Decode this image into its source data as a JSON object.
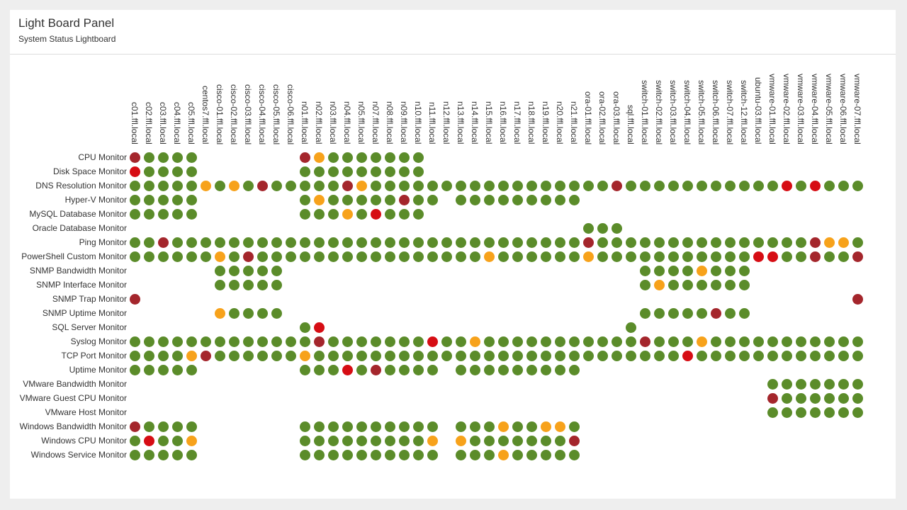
{
  "panel": {
    "title": "Light Board Panel",
    "subtitle": "System Status Lightboard"
  },
  "colors": {
    "G": "#5b8c2a",
    "O": "#f7a21b",
    "D": "#a4262c",
    "R": "#d60d14"
  },
  "legend_codes": {
    "G": "ok",
    "O": "warning",
    "D": "critical",
    "R": "down"
  },
  "nodes": [
    "c01.ffl.local",
    "c02.ffl.local",
    "c03.ffl.local",
    "c04.ffl.local",
    "c05.ffl.local",
    "centos7.ffl.local",
    "cisco-01.ffl.local",
    "cisco-02.ffl.local",
    "cisco-03.ffl.local",
    "cisco-04.ffl.local",
    "cisco-05.ffl.local",
    "cisco-06.ffl.local",
    "n01.ffl.local",
    "n02.ffl.local",
    "n03.ffl.local",
    "n04.ffl.local",
    "n05.ffl.local",
    "n07.ffl.local",
    "n08.ffl.local",
    "n09.ffl.local",
    "n10.ffl.local",
    "n11.ffl.local",
    "n12.ffl.local",
    "n13.ffl.local",
    "n14.ffl.local",
    "n15.ffl.local",
    "n16.ffl.local",
    "n17.ffl.local",
    "n18.ffl.local",
    "n19.ffl.local",
    "n20.ffl.local",
    "n21.ffl.local",
    "ora-01.ffl.local",
    "ora-02.ffl.local",
    "ora-03.ffl.local",
    "sql.ffl.local",
    "switch-01.ffl.local",
    "switch-02.ffl.local",
    "switch-03.ffl.local",
    "switch-04.ffl.local",
    "switch-05.ffl.local",
    "switch-06.ffl.local",
    "switch-07.ffl.local",
    "switch-12.ffl.local",
    "ubuntu-03.ffl.local",
    "vmware-01.ffl.local",
    "vmware-02.ffl.local",
    "vmware-03.ffl.local",
    "vmware-04.ffl.local",
    "vmware-05.ffl.local",
    "vmware-06.ffl.local",
    "vmware-07.ffl.local"
  ],
  "monitors": [
    {
      "name": "CPU Monitor",
      "status": "DGGGG.......DOGGGGGGG..............................."
    },
    {
      "name": "Disk Space Monitor",
      "status": "RGGGG.......GGGGGGGGG..............................."
    },
    {
      "name": "DNS Resolution Monitor",
      "status": "GGGGGOGOGDGGGGGDOGGGGGGGGGGGGGGGGGDGGGGGGGGGGGRGRGGG"
    },
    {
      "name": "Hyper-V Monitor",
      "status": "GGGGG.......GOGGGGGDGG.GGGGGGGGG...................."
    },
    {
      "name": "MySQL Database Monitor",
      "status": "GGGGG.......GGGOGRGGG..............................."
    },
    {
      "name": "Oracle Database Monitor",
      "status": "................................GGG................."
    },
    {
      "name": "Ping Monitor",
      "status": "GGDGGGGGGGGGGGGGGGGGGGGGGGGGGGGGDGGGGGGGGGGGGGGGDOOG"
    },
    {
      "name": "PowerShell Custom Monitor",
      "status": "GGGGGGOGDGGGGGGGGGGGGGGGGOGGGGGGOGGGGGGGGGGGRRGGDGGD"
    },
    {
      "name": "SNMP Bandwidth Monitor",
      "status": "......GGGGG.........................GGGGOGGG........"
    },
    {
      "name": "SNMP Interface Monitor",
      "status": "......GGGGG.........................GOGGGGGG........"
    },
    {
      "name": "SNMP Trap Monitor",
      "status": "D..................................................D"
    },
    {
      "name": "SNMP Uptime Monitor",
      "status": "......OGGGG.........................GGGGGDGG........"
    },
    {
      "name": "SQL Server Monitor",
      "status": "............GR.....................G................"
    },
    {
      "name": "Syslog Monitor",
      "status": "GGGGGGGGGGGGGDGGGGGGGRGGOGGGGGGGGGGGDGGGOGGGGGGGGGGG"
    },
    {
      "name": "TCP Port Monitor",
      "status": "GGGGODGGGGGGOGGGGGGGGGGGGGGGGGGGGGGGGGGRGGGGGGGGGGGG"
    },
    {
      "name": "Uptime Monitor",
      "status": "GGGGG.......GGGRGDGGGG.GGGGGGGGG...................."
    },
    {
      "name": "VMware Bandwidth Monitor",
      "status": ".............................................GGGGGGG"
    },
    {
      "name": "VMware Guest CPU Monitor",
      "status": ".............................................DGGGGGG"
    },
    {
      "name": "VMware Host Monitor",
      "status": ".............................................GGGGGGG"
    },
    {
      "name": "Windows Bandwidth Monitor",
      "status": "DGGGG.......GGGGGGGGGG.GGGOGGOOG...................."
    },
    {
      "name": "Windows CPU Monitor",
      "status": "GRGGO.......GGGGGGGGGO.OGGGGGGGD...................."
    },
    {
      "name": "Windows Service Monitor",
      "status": "GGGGG.......GGGGGGGGGG.GGGOGGGGG...................."
    }
  ]
}
